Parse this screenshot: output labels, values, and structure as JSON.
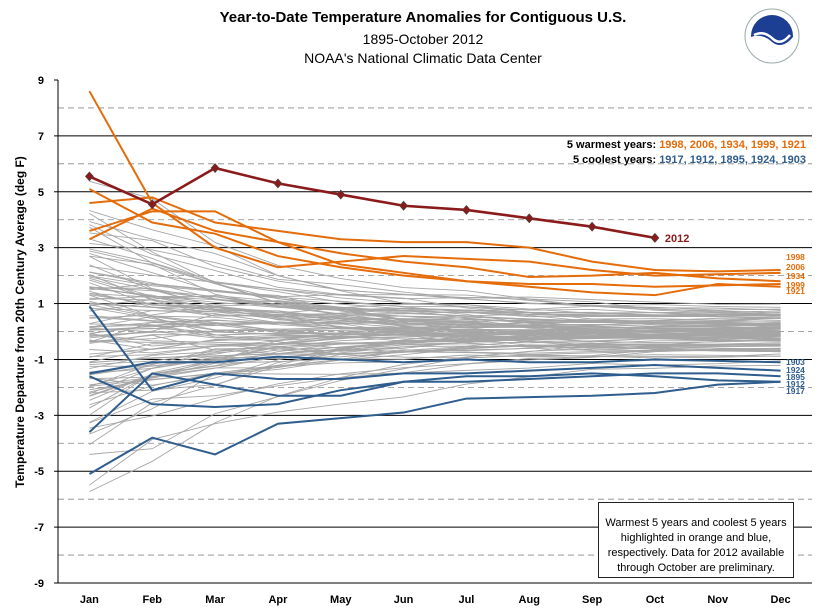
{
  "header": {
    "title": "Year-to-Date  Temperature Anomalies for Contiguous  U.S.",
    "subtitle": "1895-October 2012",
    "source": "NOAA's National Climatic Data Center",
    "logo_text": "NOAA"
  },
  "legend": {
    "warm_label": "5 warmest years:",
    "warm_years": "1998, 2006, 1934, 1999, 1921",
    "cool_label": "5 coolest years:",
    "cool_years": "1917, 1912, 1895, 1924, 1903"
  },
  "note": "Warmest 5 years and coolest 5 years highlighted in orange and blue, respectively. Data for 2012  available through October are preliminary.",
  "colors": {
    "warm": "#e46c0a",
    "cool": "#2e5d8e",
    "highlight": "#8b1a1a",
    "background": "#a0a0a0"
  },
  "chart_data": {
    "type": "line",
    "title": "Year-to-Date  Temperature Anomalies for Contiguous  U.S.",
    "ylabel": "Temperature Departure from 20th Century Average (deg F)",
    "xlabel": "",
    "categories": [
      "Jan",
      "Feb",
      "Mar",
      "Apr",
      "May",
      "Jun",
      "Jul",
      "Aug",
      "Sep",
      "Oct",
      "Nov",
      "Dec"
    ],
    "ylim": [
      -9,
      9
    ],
    "yticks": [
      -9,
      -7,
      -5,
      -3,
      -1,
      1,
      3,
      5,
      7,
      9
    ],
    "grid": true,
    "highlight": {
      "name": "2012",
      "color": "#8b1a1a",
      "values": [
        5.55,
        4.55,
        5.85,
        5.3,
        4.9,
        4.5,
        4.35,
        4.05,
        3.75,
        3.35
      ]
    },
    "warm_series": [
      {
        "name": "1998",
        "color": "#e46c0a",
        "values": [
          4.6,
          4.8,
          3.9,
          3.6,
          3.3,
          3.2,
          3.2,
          3.0,
          2.5,
          2.2,
          2.15,
          2.2
        ]
      },
      {
        "name": "2006",
        "color": "#e46c0a",
        "values": [
          8.6,
          4.6,
          3.0,
          2.3,
          2.5,
          2.7,
          2.6,
          2.5,
          2.2,
          2.0,
          2.05,
          2.1
        ]
      },
      {
        "name": "1934",
        "color": "#e46c0a",
        "values": [
          3.3,
          4.4,
          3.6,
          3.2,
          2.8,
          2.5,
          2.3,
          1.95,
          2.0,
          2.1,
          1.9,
          1.8
        ]
      },
      {
        "name": "1999",
        "color": "#e46c0a",
        "values": [
          5.1,
          3.9,
          3.5,
          2.7,
          2.3,
          2.0,
          1.8,
          1.7,
          1.7,
          1.6,
          1.65,
          1.7
        ]
      },
      {
        "name": "1921",
        "color": "#e46c0a",
        "values": [
          3.6,
          4.3,
          4.3,
          3.2,
          2.4,
          2.1,
          1.8,
          1.6,
          1.4,
          1.3,
          1.7,
          1.6
        ]
      }
    ],
    "cool_series": [
      {
        "name": "1903",
        "color": "#2e5d8e",
        "values": [
          -1.5,
          -1.1,
          -1.1,
          -0.9,
          -1.0,
          -1.1,
          -1.0,
          -1.1,
          -1.1,
          -1.0,
          -1.05,
          -1.1
        ]
      },
      {
        "name": "1924",
        "color": "#2e5d8e",
        "values": [
          0.9,
          -2.1,
          -1.5,
          -1.7,
          -1.7,
          -1.5,
          -1.5,
          -1.4,
          -1.3,
          -1.2,
          -1.3,
          -1.4
        ]
      },
      {
        "name": "1895",
        "color": "#2e5d8e",
        "values": [
          -1.6,
          -2.6,
          -2.7,
          -2.6,
          -2.1,
          -1.8,
          -1.8,
          -1.7,
          -1.6,
          -1.5,
          -1.5,
          -1.6
        ]
      },
      {
        "name": "1912",
        "color": "#2e5d8e",
        "values": [
          -3.6,
          -1.5,
          -1.9,
          -2.3,
          -2.3,
          -1.8,
          -1.6,
          -1.6,
          -1.5,
          -1.6,
          -1.75,
          -1.8
        ]
      },
      {
        "name": "1917",
        "color": "#2e5d8e",
        "values": [
          -5.1,
          -3.8,
          -4.4,
          -3.3,
          -3.1,
          -2.9,
          -2.4,
          -2.35,
          -2.3,
          -2.2,
          -1.9,
          -1.8
        ]
      }
    ],
    "background_series_note": "Remaining years 1895-2011 drawn as thin gray lines"
  }
}
